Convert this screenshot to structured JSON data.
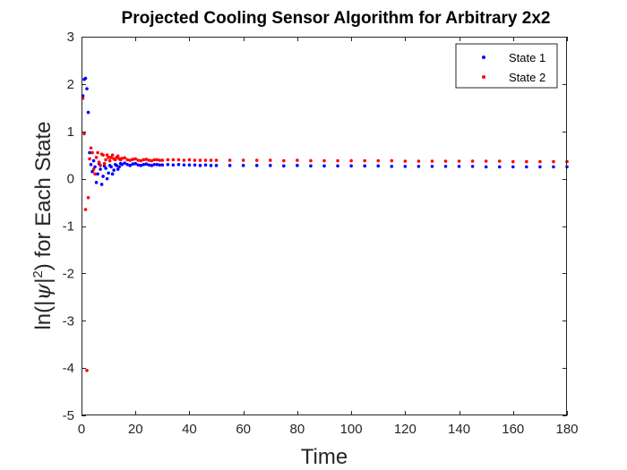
{
  "chart_data": {
    "type": "scatter",
    "title": "Projected Cooling Sensor Algorithm for Arbitrary 2x2",
    "xlabel": "Time",
    "ylabel_parts": [
      "ln(|",
      "ψ",
      "|",
      "2",
      ") for Each State"
    ],
    "xlim": [
      0,
      180
    ],
    "ylim": [
      -5,
      3
    ],
    "xticks": [
      0,
      20,
      40,
      60,
      80,
      100,
      120,
      140,
      160,
      180
    ],
    "yticks": [
      -5,
      -4,
      -3,
      -2,
      -1,
      0,
      1,
      2,
      3
    ],
    "grid": false,
    "legend_position": "top-right",
    "series": [
      {
        "name": "State 1",
        "color": "#0000ff",
        "x": [
          0.5,
          1,
          1.5,
          2,
          2.5,
          3,
          3.5,
          4,
          4.5,
          5,
          5.5,
          6,
          6.5,
          7,
          7.5,
          8,
          8.5,
          9,
          9.5,
          10,
          10.5,
          11,
          11.5,
          12,
          12.5,
          13,
          13.5,
          14,
          14.5,
          15,
          16,
          17,
          18,
          19,
          20,
          21,
          22,
          23,
          24,
          25,
          26,
          27,
          28,
          29,
          30,
          32,
          34,
          36,
          38,
          40,
          42,
          44,
          46,
          48,
          50,
          55,
          60,
          65,
          70,
          75,
          80,
          85,
          90,
          95,
          100,
          105,
          110,
          115,
          120,
          125,
          130,
          135,
          140,
          145,
          150,
          155,
          160,
          165,
          170,
          175,
          180
        ],
        "y": [
          1.75,
          2.1,
          2.12,
          1.9,
          1.4,
          0.55,
          0.3,
          0.15,
          0.38,
          0.25,
          -0.08,
          0.1,
          0.32,
          0.2,
          -0.12,
          0.05,
          0.27,
          0.22,
          0.0,
          0.12,
          0.28,
          0.25,
          0.1,
          0.18,
          0.3,
          0.28,
          0.2,
          0.25,
          0.32,
          0.3,
          0.33,
          0.3,
          0.28,
          0.31,
          0.32,
          0.29,
          0.28,
          0.3,
          0.31,
          0.29,
          0.28,
          0.3,
          0.3,
          0.29,
          0.29,
          0.3,
          0.29,
          0.3,
          0.29,
          0.29,
          0.29,
          0.28,
          0.29,
          0.28,
          0.28,
          0.28,
          0.28,
          0.28,
          0.28,
          0.27,
          0.28,
          0.27,
          0.27,
          0.27,
          0.27,
          0.27,
          0.27,
          0.26,
          0.26,
          0.26,
          0.26,
          0.26,
          0.26,
          0.26,
          0.25,
          0.25,
          0.25,
          0.25,
          0.25,
          0.25,
          0.25
        ]
      },
      {
        "name": "State 2",
        "color": "#ff0000",
        "x": [
          0.5,
          1,
          1.5,
          2,
          2.5,
          3,
          3.5,
          4,
          4.5,
          5,
          5.5,
          6,
          6.5,
          7,
          7.5,
          8,
          8.5,
          9,
          9.5,
          10,
          10.5,
          11,
          11.5,
          12,
          12.5,
          13,
          13.5,
          14,
          14.5,
          15,
          16,
          17,
          18,
          19,
          20,
          21,
          22,
          23,
          24,
          25,
          26,
          27,
          28,
          29,
          30,
          32,
          34,
          36,
          38,
          40,
          42,
          44,
          46,
          48,
          50,
          55,
          60,
          65,
          70,
          75,
          80,
          85,
          90,
          95,
          100,
          105,
          110,
          115,
          120,
          125,
          130,
          135,
          140,
          145,
          150,
          155,
          160,
          165,
          170,
          175,
          180
        ],
        "y": [
          1.7,
          0.95,
          -0.65,
          -4.05,
          -0.4,
          0.42,
          0.65,
          0.55,
          0.2,
          0.1,
          0.45,
          0.55,
          0.35,
          0.28,
          0.52,
          0.5,
          0.32,
          0.4,
          0.5,
          0.45,
          0.38,
          0.45,
          0.5,
          0.42,
          0.4,
          0.45,
          0.48,
          0.42,
          0.4,
          0.43,
          0.44,
          0.4,
          0.39,
          0.41,
          0.42,
          0.39,
          0.38,
          0.4,
          0.41,
          0.39,
          0.38,
          0.4,
          0.4,
          0.39,
          0.39,
          0.4,
          0.4,
          0.4,
          0.39,
          0.4,
          0.39,
          0.39,
          0.39,
          0.39,
          0.39,
          0.39,
          0.39,
          0.39,
          0.39,
          0.38,
          0.39,
          0.38,
          0.38,
          0.38,
          0.38,
          0.38,
          0.38,
          0.38,
          0.37,
          0.37,
          0.37,
          0.37,
          0.37,
          0.37,
          0.37,
          0.37,
          0.36,
          0.36,
          0.36,
          0.36,
          0.36
        ]
      }
    ]
  }
}
